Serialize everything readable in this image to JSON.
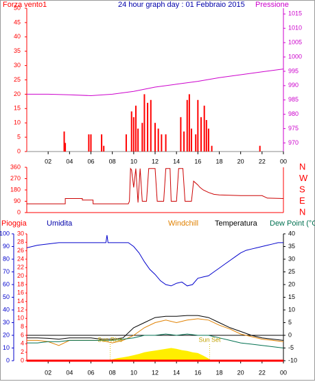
{
  "chart_data": [
    {
      "type": "bar",
      "title": "24 hour graph day : 01 Febbraio 2015",
      "xlim": [
        0,
        24
      ],
      "xticks": [
        {
          "value": 2,
          "label": "02"
        },
        {
          "value": 4,
          "label": "04"
        },
        {
          "value": 6,
          "label": "06"
        },
        {
          "value": 8,
          "label": "08"
        },
        10,
        12,
        14,
        16,
        18,
        20,
        22,
        {
          "value": 24,
          "label": "00"
        }
      ],
      "ylim": [
        0,
        50
      ],
      "yticks": [
        0,
        5,
        10,
        15,
        20,
        25,
        30,
        35,
        40,
        45,
        50
      ],
      "y2lim": [
        967,
        1017
      ],
      "y2ticks": [
        970,
        975,
        980,
        985,
        990,
        995,
        1000,
        1005,
        1010,
        1015
      ],
      "series": [
        {
          "name": "Forza vento1",
          "color": "#ff0000",
          "type": "bar",
          "x": [
            3.5,
            3.6,
            5.8,
            6.0,
            7.0,
            7.2,
            9.3,
            9.8,
            10.0,
            10.2,
            10.4,
            10.8,
            11.0,
            11.3,
            11.6,
            12.0,
            12.3,
            12.6,
            13.0,
            14.4,
            14.7,
            15.0,
            15.2,
            15.4,
            15.8,
            16.0,
            16.3,
            16.6,
            16.8,
            17.0,
            17.3,
            21.8
          ],
          "values": [
            7,
            3,
            6,
            6,
            6,
            2,
            6,
            14,
            12,
            16,
            8,
            10,
            20,
            17,
            18,
            10,
            8,
            6,
            6,
            12,
            7,
            18,
            20,
            8,
            6,
            18,
            12,
            16,
            11,
            8,
            2,
            2
          ]
        },
        {
          "name": "Pressione",
          "color": "#cc00cc",
          "type": "line",
          "axis": "y2",
          "x": [
            0,
            2,
            4,
            6,
            8,
            10,
            12,
            14,
            16,
            18,
            20,
            22,
            24
          ],
          "values": [
            987,
            987,
            986.8,
            986.5,
            987,
            988,
            989.5,
            990.5,
            991.5,
            992.8,
            993.8,
            994.8,
            995.8
          ]
        }
      ]
    },
    {
      "type": "line",
      "xlim": [
        0,
        24
      ],
      "ylim": [
        0,
        360
      ],
      "yticks": [
        0,
        90,
        180,
        270,
        360
      ],
      "direction_labels": [
        "N",
        "E",
        "S",
        "W",
        "N"
      ],
      "series": [
        {
          "color": "#cc0000",
          "x": [
            0,
            3.6,
            3.6,
            5.2,
            5.2,
            6.2,
            6.2,
            9.5,
            9.6,
            9.7,
            9.8,
            10,
            10.2,
            10.4,
            10.6,
            10.8,
            11.2,
            11.4,
            12,
            12.2,
            12.8,
            13,
            13.4,
            13.5,
            14,
            14.2,
            14.6,
            14.8,
            15.4,
            15.6,
            16,
            16.2,
            16.5,
            17,
            17.5,
            18,
            20,
            22,
            22.5,
            24
          ],
          "values": [
            70,
            70,
            112,
            112,
            100,
            100,
            70,
            70,
            90,
            350,
            340,
            200,
            350,
            80,
            350,
            90,
            90,
            350,
            350,
            90,
            90,
            350,
            350,
            90,
            90,
            350,
            350,
            90,
            90,
            250,
            220,
            200,
            180,
            160,
            145,
            140,
            135,
            135,
            115,
            112
          ]
        }
      ]
    },
    {
      "type": "line",
      "xlim": [
        0,
        24
      ],
      "xticks": [
        {
          "value": 2,
          "label": "02"
        },
        {
          "value": 4,
          "label": "04"
        },
        {
          "value": 6,
          "label": "06"
        },
        {
          "value": 8,
          "label": "08"
        },
        10,
        12,
        14,
        16,
        18,
        20,
        22,
        {
          "value": 24,
          "label": "00"
        }
      ],
      "ylim": [
        0,
        100
      ],
      "yticks": [
        0,
        10,
        20,
        30,
        40,
        50,
        60,
        70,
        80,
        90,
        100
      ],
      "y3lim": [
        0,
        30
      ],
      "y3ticks": [
        0,
        2,
        4,
        6,
        8,
        10,
        12,
        14,
        16,
        18,
        20,
        22,
        24,
        26,
        28,
        30
      ],
      "y2lim": [
        -10,
        40
      ],
      "y2ticks": [
        -10,
        -5,
        0,
        5,
        10,
        15,
        20,
        25,
        30,
        35,
        40
      ],
      "annotations": [
        {
          "text": "Sun Rise",
          "x": 7.8
        },
        {
          "text": "Sun Set",
          "x": 17.1
        }
      ],
      "series": [
        {
          "name": "Pioggia",
          "color": "#ff0000",
          "axis": "y3",
          "x": [
            0,
            24
          ],
          "values": [
            0,
            0
          ]
        },
        {
          "name": "Umidita",
          "color": "#0000cc",
          "x": [
            0,
            1,
            2,
            3,
            4,
            5,
            6,
            7,
            7.4,
            7.5,
            7.6,
            8,
            9,
            9.5,
            10,
            10.5,
            11,
            11.5,
            12,
            12.5,
            13,
            13.5,
            14,
            14.5,
            15,
            15.5,
            16,
            16.5,
            17,
            17.5,
            18,
            18.5,
            19,
            19.5,
            20,
            20.5,
            21,
            21.5,
            22,
            22.5,
            23,
            23.5,
            24
          ],
          "values": [
            89,
            91,
            92,
            93,
            93,
            93,
            93,
            93,
            93,
            99,
            93,
            93,
            93,
            93,
            90,
            85,
            78,
            72,
            68,
            63,
            60,
            59,
            61,
            62,
            59,
            60,
            65,
            66,
            67,
            70,
            73,
            76,
            79,
            82,
            85,
            87,
            88,
            89,
            90,
            91,
            92,
            93,
            93
          ]
        },
        {
          "name": "Windchill",
          "color": "#e08000",
          "axis": "y2",
          "x": [
            0,
            1,
            2,
            3,
            4,
            5,
            6,
            7,
            8,
            9,
            10,
            11,
            12,
            13,
            14,
            15,
            16,
            17,
            18,
            19,
            20,
            21,
            22,
            23,
            24
          ],
          "values": [
            -2,
            -2,
            -2.5,
            -4,
            -2,
            -2,
            -2,
            -2,
            -3,
            -2,
            0,
            3,
            5,
            6,
            5,
            6,
            6.5,
            6,
            4,
            2.5,
            0.5,
            -0.5,
            -1.5,
            -2,
            -2.5
          ]
        },
        {
          "name": "Temperatura",
          "color": "#000000",
          "axis": "y2",
          "x": [
            0,
            1,
            2,
            3,
            4,
            5,
            6,
            7,
            8,
            9,
            10,
            11,
            12,
            13,
            14,
            15,
            16,
            17,
            18,
            19,
            20,
            21,
            22,
            23,
            24
          ],
          "values": [
            -1,
            -1,
            -1.2,
            -1.5,
            -1,
            -1,
            -1,
            -1.5,
            -1.5,
            -1,
            3,
            5,
            7,
            7.5,
            7.5,
            7.8,
            7.8,
            7,
            5,
            3,
            1.5,
            0,
            -1,
            -1.5,
            -2
          ]
        },
        {
          "name": "Dew Point (°C",
          "color": "#007050",
          "axis": "y2",
          "x": [
            0,
            1,
            2,
            3,
            4,
            5,
            6,
            7,
            8,
            9,
            10,
            11,
            12,
            13,
            14,
            15,
            16,
            17,
            18,
            19,
            20,
            21,
            22,
            23,
            24
          ],
          "values": [
            -3,
            -3,
            -2.5,
            -2.5,
            -2,
            -2,
            -2,
            -2,
            -2,
            -1.5,
            -1,
            0,
            0,
            0.5,
            0,
            0.5,
            0,
            0,
            -1,
            -2,
            -3,
            -3.5,
            -4,
            -4.5,
            -5
          ]
        },
        {
          "color": "#ffee00",
          "axis": "y3",
          "type": "area",
          "x": [
            7.5,
            8,
            8.5,
            9,
            9.5,
            10,
            10.5,
            11,
            11.5,
            12,
            12.5,
            13,
            13.5,
            14,
            14.5,
            15,
            15.5,
            16,
            16.5,
            17,
            17.2
          ],
          "values": [
            0,
            0.3,
            0.6,
            0.8,
            1,
            1.3,
            1.6,
            2,
            2.2,
            2.4,
            2.6,
            2.8,
            3,
            2.8,
            2.5,
            2.3,
            2,
            1.8,
            1.2,
            0.5,
            0
          ]
        }
      ]
    }
  ]
}
